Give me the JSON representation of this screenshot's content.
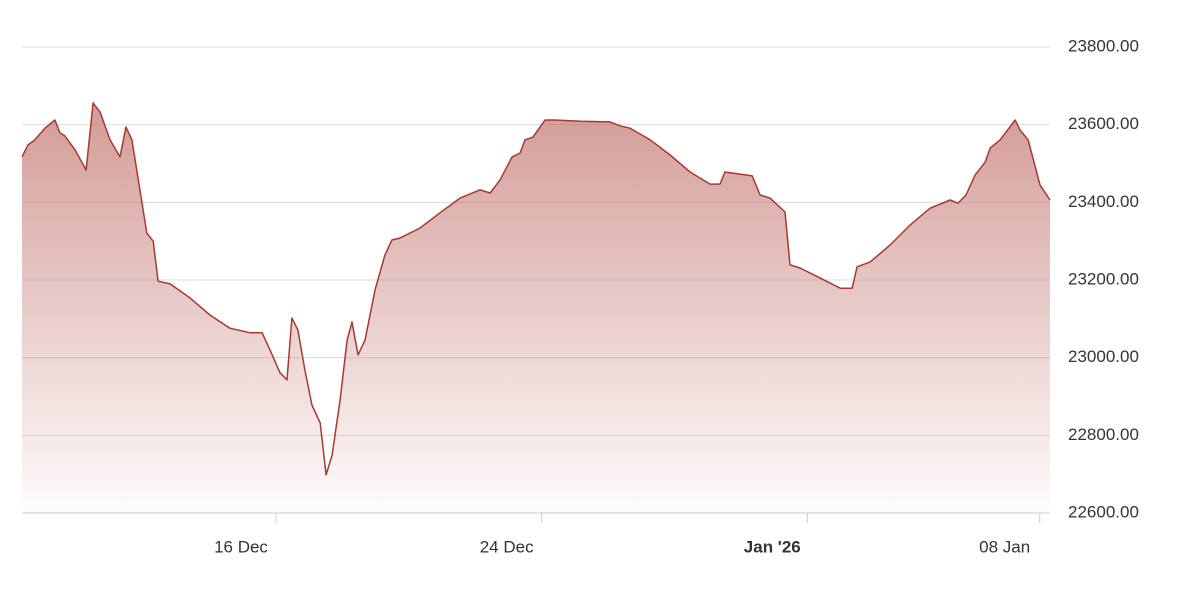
{
  "chart_data": {
    "type": "area",
    "x": [
      8.35,
      8.53,
      8.74,
      9.04,
      9.34,
      9.49,
      9.64,
      9.95,
      10.28,
      10.49,
      10.7,
      11.0,
      11.3,
      11.48,
      11.66,
      11.9,
      12.11,
      12.3,
      12.45,
      12.81,
      13.41,
      14.01,
      14.61,
      15.22,
      15.58,
      15.82,
      16.12,
      16.33,
      16.48,
      16.66,
      16.87,
      17.08,
      17.33,
      17.51,
      17.69,
      17.93,
      18.14,
      18.29,
      18.47,
      18.68,
      18.98,
      19.28,
      19.49,
      19.73,
      20.34,
      20.94,
      21.54,
      22.14,
      22.45,
      22.75,
      23.11,
      23.35,
      23.5,
      23.74,
      24.1,
      24.4,
      25.16,
      26.06,
      26.36,
      26.66,
      27.27,
      27.87,
      28.47,
      29.07,
      29.37,
      29.52,
      30.34,
      30.58,
      30.88,
      31.33,
      31.48,
      31.78,
      32.39,
      32.99,
      33.35,
      33.5,
      33.89,
      34.49,
      35.1,
      35.7,
      36.3,
      36.54,
      36.78,
      37.05,
      37.36,
      37.51,
      37.81,
      38.26,
      38.41,
      38.65,
      39.01,
      39.31
    ],
    "values": [
      23517,
      23548,
      23561,
      23591,
      23612,
      23579,
      23571,
      23535,
      23483,
      23656,
      23633,
      23561,
      23517,
      23594,
      23561,
      23432,
      23321,
      23300,
      23197,
      23190,
      23154,
      23110,
      23076,
      23064,
      23064,
      23020,
      22961,
      22943,
      23102,
      23071,
      22968,
      22878,
      22832,
      22698,
      22749,
      22891,
      23045,
      23092,
      23007,
      23045,
      23174,
      23264,
      23303,
      23308,
      23334,
      23373,
      23411,
      23432,
      23424,
      23458,
      23517,
      23527,
      23561,
      23568,
      23612,
      23612,
      23609,
      23607,
      23597,
      23591,
      23561,
      23522,
      23478,
      23447,
      23447,
      23478,
      23468,
      23419,
      23411,
      23375,
      23239,
      23231,
      23205,
      23179,
      23179,
      23234,
      23246,
      23290,
      23342,
      23385,
      23406,
      23398,
      23419,
      23470,
      23504,
      23540,
      23561,
      23612,
      23586,
      23561,
      23445,
      23406
    ],
    "color": "#a8392e",
    "xlim": [
      8.35,
      39.31
    ],
    "xticks": [
      {
        "value": 16,
        "label": "16 Dec"
      },
      {
        "value": 24,
        "label": "24 Dec"
      },
      {
        "value": 32,
        "label": "Jan '26"
      },
      {
        "value": 39,
        "label": "08 Jan"
      }
    ],
    "ylim": [
      22600,
      23800
    ],
    "yticks": [
      {
        "value": 22600,
        "label": "22600.00"
      },
      {
        "value": 22800,
        "label": "22800.00"
      },
      {
        "value": 23000,
        "label": "23000.00"
      },
      {
        "value": 23200,
        "label": "23200.00"
      },
      {
        "value": 23400,
        "label": "23400.00"
      },
      {
        "value": 23600,
        "label": "23600.00"
      },
      {
        "value": 23800,
        "label": "23800.00"
      }
    ],
    "grid": true
  }
}
